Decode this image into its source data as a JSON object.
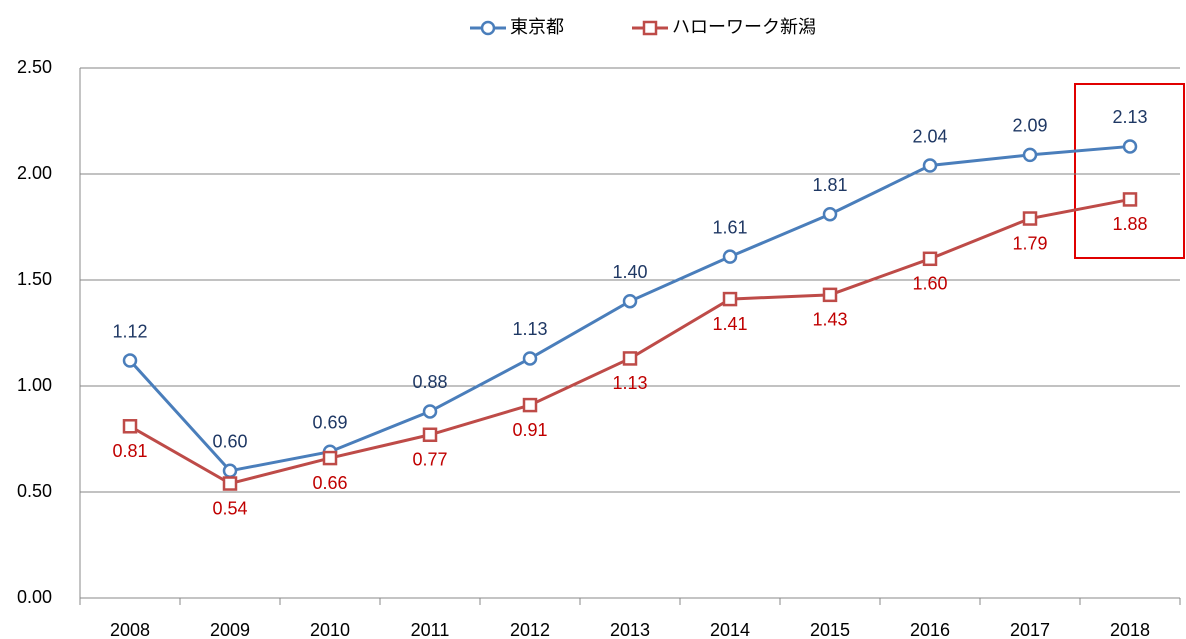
{
  "chart_data": {
    "type": "line",
    "categories": [
      "2008",
      "2009",
      "2010",
      "2011",
      "2012",
      "2013",
      "2014",
      "2015",
      "2016",
      "2017",
      "2018"
    ],
    "series": [
      {
        "name": "東京都",
        "color": "#4a7ebb",
        "label_color": "#1f3864",
        "marker": "circle",
        "values": [
          1.12,
          0.6,
          0.69,
          0.88,
          1.13,
          1.4,
          1.61,
          1.81,
          2.04,
          2.09,
          2.13
        ],
        "value_labels": [
          "1.12",
          "0.60",
          "0.69",
          "0.88",
          "1.13",
          "1.40",
          "1.61",
          "1.81",
          "2.04",
          "2.09",
          "2.13"
        ]
      },
      {
        "name": "ハローワーク新潟",
        "color": "#be4b48",
        "label_color": "#c00000",
        "marker": "square",
        "values": [
          0.81,
          0.54,
          0.66,
          0.77,
          0.91,
          1.13,
          1.41,
          1.43,
          1.6,
          1.79,
          1.88
        ],
        "value_labels": [
          "0.81",
          "0.54",
          "0.66",
          "0.77",
          "0.91",
          "1.13",
          "1.41",
          "1.43",
          "1.60",
          "1.79",
          "1.88"
        ]
      }
    ],
    "ylim": [
      0,
      2.5
    ],
    "yticks": [
      {
        "value": 0,
        "label": "0.00"
      },
      {
        "value": 0.5,
        "label": "0.50"
      },
      {
        "value": 1,
        "label": "1.00"
      },
      {
        "value": 1.5,
        "label": "1.50"
      },
      {
        "value": 2,
        "label": "2.00"
      },
      {
        "value": 2.5,
        "label": "2.50"
      }
    ],
    "grid": true,
    "legend": "top"
  }
}
